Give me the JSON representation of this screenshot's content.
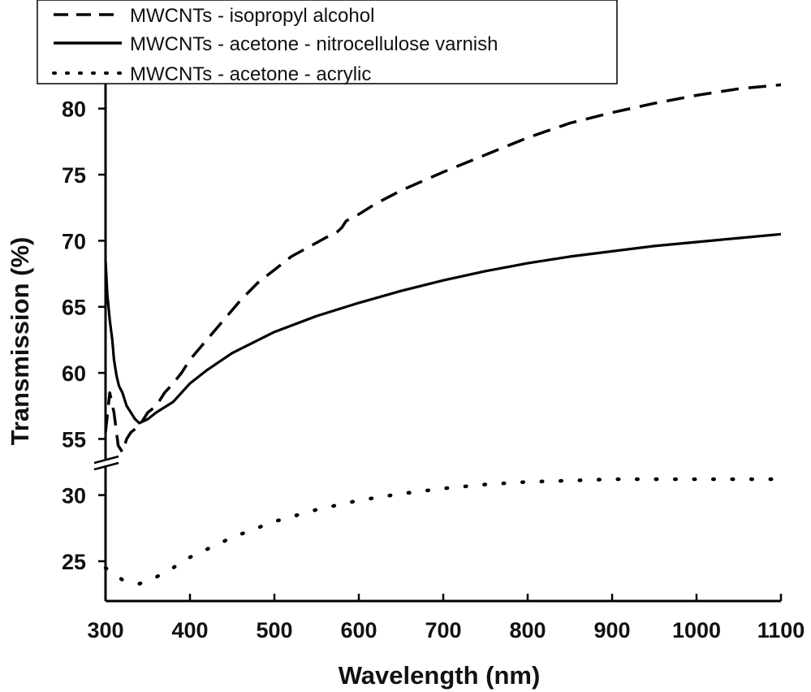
{
  "chart_data": {
    "type": "line",
    "title": "",
    "xlabel": "Wavelength (nm)",
    "ylabel": "Transmission (%)",
    "xlim": [
      300,
      1100
    ],
    "x_ticks": [
      300,
      400,
      500,
      600,
      700,
      800,
      900,
      1000,
      1100
    ],
    "y_axis_break": {
      "upper_segment": {
        "ylim": [
          53,
          82.5
        ],
        "ticks": [
          55,
          60,
          65,
          70,
          75,
          80
        ]
      },
      "lower_segment": {
        "ylim": [
          21.5,
          32
        ],
        "ticks": [
          25,
          30
        ]
      }
    },
    "legend": {
      "placement": "top-left"
    },
    "series": [
      {
        "name": "MWCNTs - isopropyl alcohol",
        "style": "dashed",
        "x": [
          300,
          305,
          310,
          315,
          320,
          325,
          330,
          340,
          350,
          360,
          370,
          380,
          390,
          400,
          420,
          440,
          460,
          480,
          500,
          520,
          540,
          560,
          575,
          580,
          585,
          600,
          620,
          650,
          700,
          750,
          800,
          850,
          900,
          950,
          1000,
          1050,
          1100
        ],
        "y": [
          55.5,
          58.5,
          57.0,
          54.5,
          54.0,
          55.0,
          55.5,
          56.0,
          57.0,
          57.5,
          58.5,
          59.2,
          60.0,
          61.0,
          62.5,
          64.0,
          65.5,
          66.8,
          67.8,
          68.8,
          69.5,
          70.2,
          70.7,
          71.0,
          71.5,
          72.0,
          72.8,
          73.8,
          75.2,
          76.5,
          77.8,
          78.9,
          79.7,
          80.4,
          81.0,
          81.5,
          81.8
        ]
      },
      {
        "name": "MWCNTs - acetone - nitrocellulose varnish",
        "style": "solid",
        "x": [
          300,
          302,
          305,
          308,
          310,
          313,
          316,
          320,
          325,
          330,
          335,
          340,
          350,
          360,
          370,
          380,
          400,
          420,
          450,
          500,
          550,
          600,
          650,
          700,
          750,
          800,
          850,
          900,
          950,
          1000,
          1050,
          1100
        ],
        "y": [
          68.5,
          66.0,
          64.0,
          62.5,
          61.0,
          59.8,
          59.0,
          58.5,
          57.5,
          57.0,
          56.5,
          56.2,
          56.5,
          57.0,
          57.4,
          57.8,
          59.2,
          60.2,
          61.5,
          63.1,
          64.3,
          65.3,
          66.2,
          67.0,
          67.7,
          68.3,
          68.8,
          69.2,
          69.6,
          69.9,
          70.2,
          70.5
        ]
      },
      {
        "name": "MWCNTs - acetone - acrylic",
        "style": "dotted",
        "x": [
          300,
          310,
          320,
          330,
          340,
          350,
          360,
          380,
          400,
          450,
          500,
          550,
          600,
          650,
          700,
          750,
          800,
          850,
          900,
          950,
          1000,
          1050,
          1100
        ],
        "y": [
          24.5,
          24.0,
          23.6,
          23.4,
          23.3,
          23.5,
          23.8,
          24.5,
          25.3,
          26.8,
          28.0,
          28.9,
          29.6,
          30.1,
          30.5,
          30.8,
          31.0,
          31.1,
          31.2,
          31.2,
          31.2,
          31.2,
          31.2
        ]
      }
    ]
  }
}
